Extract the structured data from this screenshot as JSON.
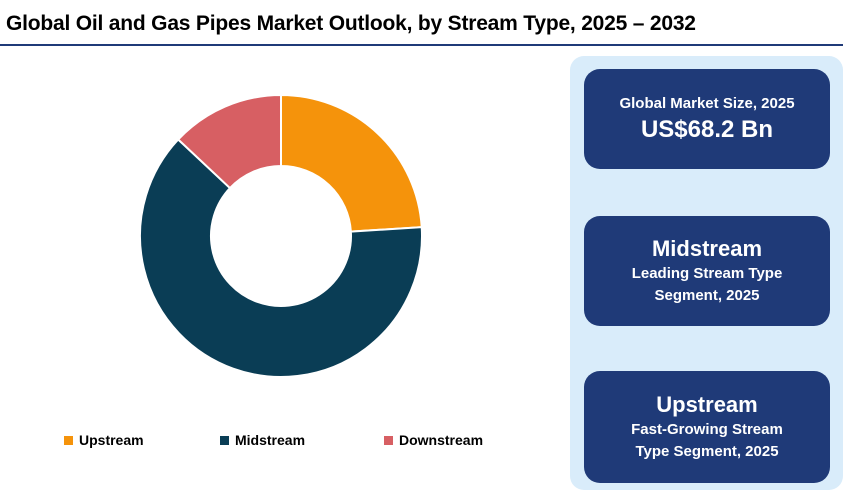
{
  "title": "Global Oil and Gas Pipes Market Outlook, by Stream Type, 2025 – 2032",
  "chart_data": {
    "type": "pie",
    "variant": "donut",
    "categories": [
      "Upstream",
      "Midstream",
      "Downstream"
    ],
    "values": [
      24,
      63,
      13
    ],
    "colors": [
      "#f5930b",
      "#0a3d55",
      "#d75f63"
    ],
    "legend_position": "bottom"
  },
  "cards": {
    "market_size": {
      "label": "Global Market Size, 2025",
      "value": "US$68.2 Bn"
    },
    "leading": {
      "name": "Midstream",
      "line1": "Leading Stream Type",
      "line2": "Segment, 2025"
    },
    "growing": {
      "name": "Upstream",
      "line1": "Fast-Growing Stream",
      "line2": "Type Segment, 2025"
    }
  }
}
